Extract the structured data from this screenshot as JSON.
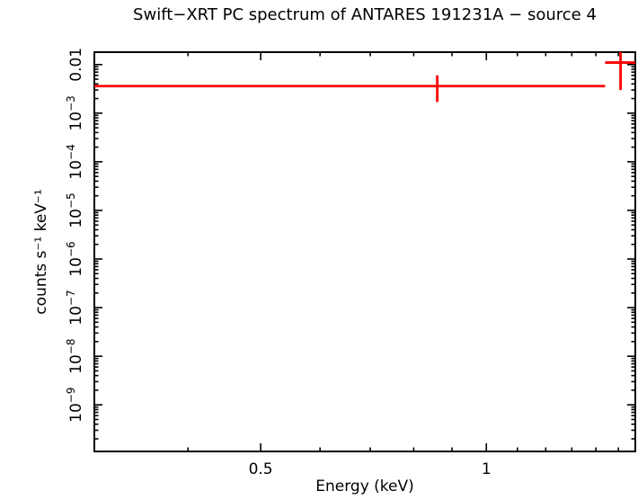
{
  "chart_data": {
    "type": "line",
    "subtype": "x-ray spectrum with error bars",
    "title": "Swift−XRT PC spectrum of ANTARES 191231A − source 4",
    "xlabel": "Energy (keV)",
    "ylabel": "counts s⁻¹ keV⁻¹",
    "xscale": "log",
    "yscale": "log",
    "xlim": [
      0.3,
      1.58
    ],
    "ylim": [
      1.1e-10,
      0.018
    ],
    "grid": false,
    "legend": "none",
    "frame_color": "#000000",
    "background": "#ffffff",
    "xticks": [
      {
        "v": 0.5,
        "label": "0.5"
      },
      {
        "v": 1,
        "label": "1"
      }
    ],
    "yticks": [
      {
        "v": 0.01,
        "label": "0.01"
      },
      {
        "v": 0.001,
        "label": "10^−3"
      },
      {
        "v": 0.0001,
        "label": "10^−4"
      },
      {
        "v": 1e-05,
        "label": "10^−5"
      },
      {
        "v": 1e-06,
        "label": "10^−6"
      },
      {
        "v": 1e-07,
        "label": "10^−7"
      },
      {
        "v": 1e-08,
        "label": "10^−8"
      },
      {
        "v": 1e-09,
        "label": "10^−9"
      }
    ],
    "series": [
      {
        "name": "source 4 spectrum",
        "color": "#ff0000",
        "points": [
          {
            "x": 0.86,
            "xlow": 0.3,
            "xhigh": 1.44,
            "y": 0.0036,
            "ylow": 0.0017,
            "yhigh": 0.006
          },
          {
            "x": 1.51,
            "xlow": 1.44,
            "xhigh": 1.58,
            "y": 0.011,
            "ylow": 0.003,
            "yhigh": 0.018
          }
        ]
      }
    ]
  }
}
